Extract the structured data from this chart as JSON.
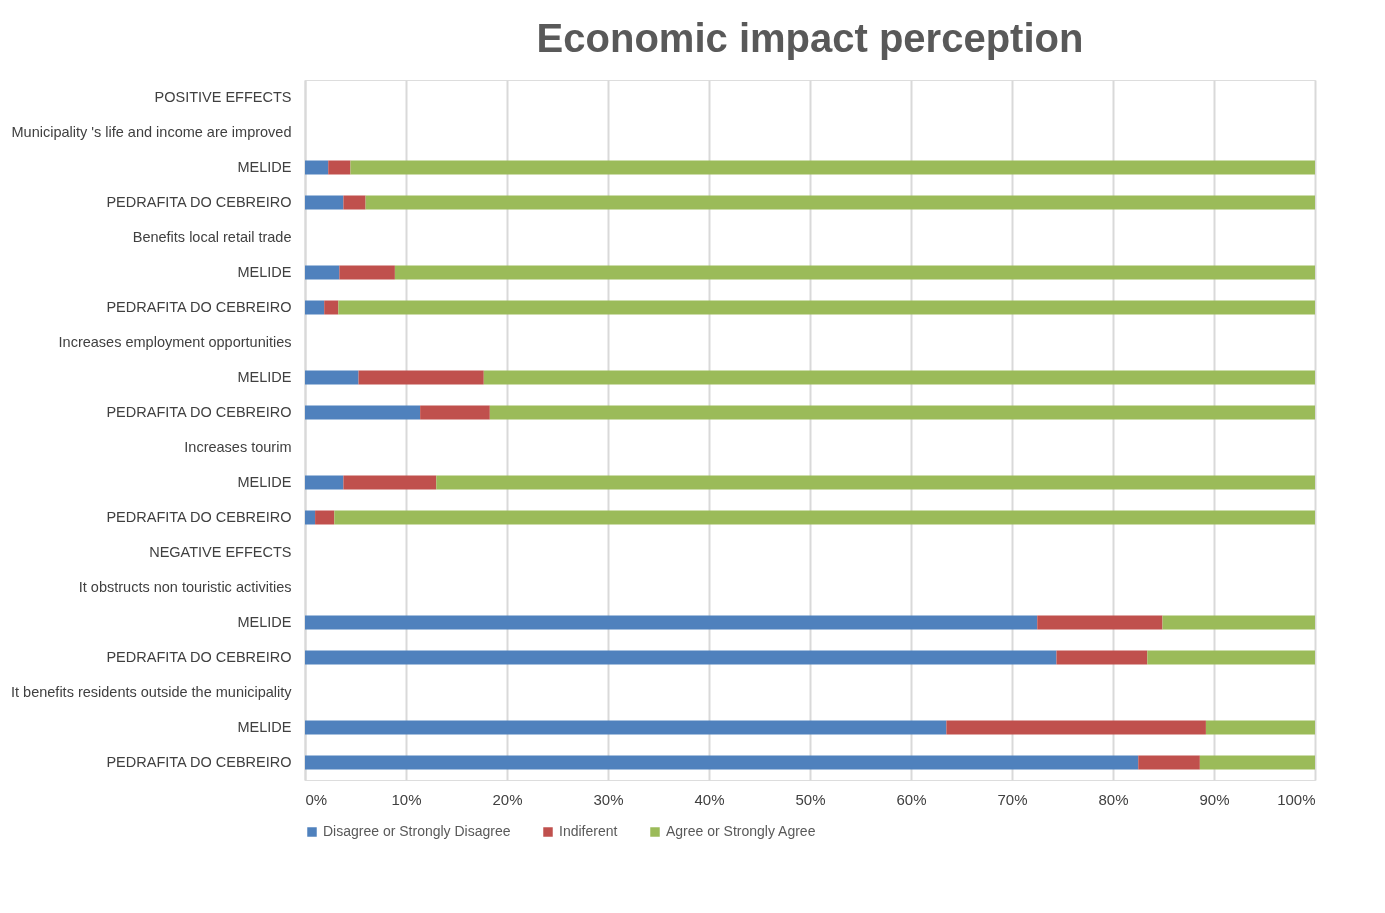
{
  "chart_data": {
    "type": "bar",
    "title": "Economic impact perception",
    "orientation": "horizontal",
    "stacked": true,
    "legend": "bottom",
    "grid": "x",
    "categories": [
      "POSITIVE EFFECTS",
      "Municipality 's life and income are improved",
      "MELIDE",
      "PEDRAFITA DO CEBREIRO",
      "Benefits local retail trade",
      "MELIDE",
      "PEDRAFITA DO CEBREIRO",
      "Increases employment opportunities",
      "MELIDE",
      "PEDRAFITA DO CEBREIRO",
      "Increases tourim",
      "MELIDE",
      "PEDRAFITA DO CEBREIRO",
      "NEGATIVE EFFECTS",
      "It obstructs non touristic activities",
      "MELIDE",
      "PEDRAFITA DO CEBREIRO",
      "It benefits residents outside the municipality",
      "MELIDE",
      "PEDRAFITA DO CEBREIRO"
    ],
    "xlim": [
      0,
      100
    ],
    "xticks": [
      {
        "value": 0,
        "label": "0%"
      },
      {
        "value": 10,
        "label": "10%"
      },
      {
        "value": 20,
        "label": "20%"
      },
      {
        "value": 30,
        "label": "30%"
      },
      {
        "value": 40,
        "label": "40%"
      },
      {
        "value": 50,
        "label": "50%"
      },
      {
        "value": 60,
        "label": "60%"
      },
      {
        "value": 70,
        "label": "70%"
      },
      {
        "value": 80,
        "label": "80%"
      },
      {
        "value": 90,
        "label": "90%"
      },
      {
        "value": 100,
        "label": "100%"
      }
    ],
    "series": [
      {
        "name": "Disagree or Strongly Disagree",
        "color": "#4f81bd",
        "values": [
          null,
          null,
          2.3,
          3.8,
          null,
          3.4,
          1.9,
          null,
          5.3,
          11.4,
          null,
          3.8,
          1.0,
          null,
          null,
          72.5,
          74.4,
          null,
          63.5,
          82.5
        ]
      },
      {
        "name": "Indiferent",
        "color": "#c0504d",
        "values": [
          null,
          null,
          2.2,
          2.2,
          null,
          5.5,
          1.4,
          null,
          12.4,
          6.9,
          null,
          9.2,
          1.9,
          null,
          null,
          12.4,
          9.0,
          null,
          25.7,
          6.1
        ]
      },
      {
        "name": "Agree  or Strongly Agree",
        "color": "#9bbb59",
        "values": [
          null,
          null,
          95.5,
          94.0,
          null,
          91.1,
          96.7,
          null,
          82.3,
          81.7,
          null,
          87.0,
          97.1,
          null,
          null,
          15.1,
          16.6,
          null,
          10.8,
          11.4
        ]
      }
    ]
  }
}
